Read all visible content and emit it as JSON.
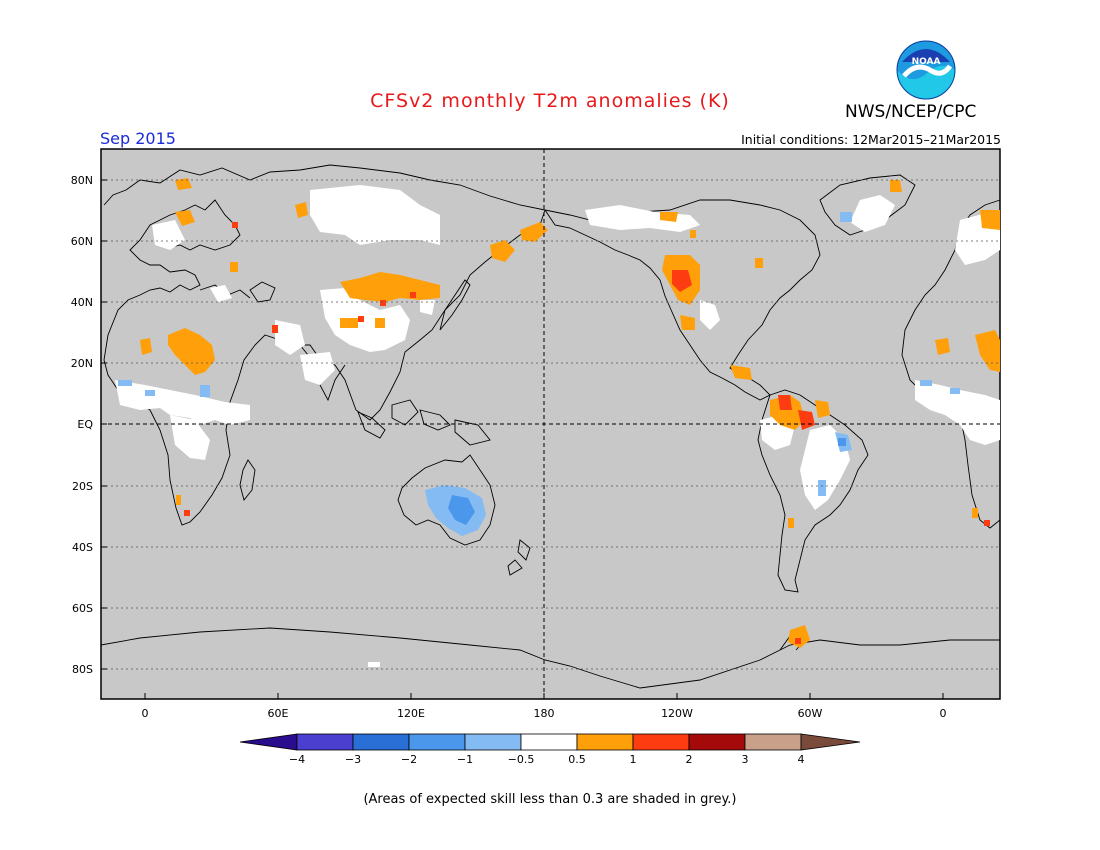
{
  "header": {
    "title": "CFSv2 monthly T2m anomalies (K)",
    "month": "Sep 2015",
    "initial_conditions": "Initial conditions: 12Mar2015–21Mar2015",
    "agency": "NWS/NCEP/CPC",
    "logo_text": "NOAA"
  },
  "map": {
    "lat_labels": [
      "80N",
      "60N",
      "40N",
      "20N",
      "EQ",
      "20S",
      "40S",
      "60S",
      "80S"
    ],
    "lon_labels": [
      "0",
      "60E",
      "120E",
      "180",
      "120W",
      "60W",
      "0"
    ],
    "background_color": "#c8c8c8",
    "coastline_color": "#000000",
    "grid": "dashed"
  },
  "colorbar": {
    "labels": [
      "−4",
      "−3",
      "−2",
      "−1",
      "−0.5",
      "0.5",
      "1",
      "2",
      "3",
      "4"
    ],
    "colors": [
      "#2a0d8f",
      "#4a3fcf",
      "#2a6fd6",
      "#4a97ec",
      "#84bbf2",
      "#ffffff",
      "#ff9f0a",
      "#fd3c12",
      "#a50a0a",
      "#c9a18a",
      "#7a4a3a"
    ]
  },
  "footer": {
    "note": "(Areas of expected skill less than 0.3 are shaded in grey.)"
  }
}
